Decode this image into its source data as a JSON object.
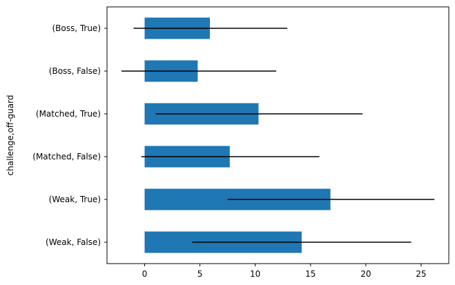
{
  "chart_data": {
    "type": "bar",
    "orientation": "horizontal",
    "ylabel": "challenge,off-guard",
    "categories": [
      "(Weak, False)",
      "(Weak, True)",
      "(Matched, False)",
      "(Matched, True)",
      "(Boss, False)",
      "(Boss, True)"
    ],
    "values": [
      14.2,
      16.8,
      7.7,
      10.3,
      4.8,
      5.9
    ],
    "error_bars": [
      {
        "low": 4.3,
        "high": 24.1
      },
      {
        "low": 7.5,
        "high": 26.2
      },
      {
        "low": -0.3,
        "high": 15.8
      },
      {
        "low": 1.0,
        "high": 19.7
      },
      {
        "low": -2.1,
        "high": 11.9
      },
      {
        "low": -1.0,
        "high": 12.9
      }
    ],
    "xticks": [
      "0",
      "5",
      "10",
      "15",
      "20",
      "25"
    ],
    "xlim": [
      -3.4,
      27.5
    ],
    "grid": false,
    "bar_color": "#1f77b4",
    "error_color": "#000000"
  }
}
